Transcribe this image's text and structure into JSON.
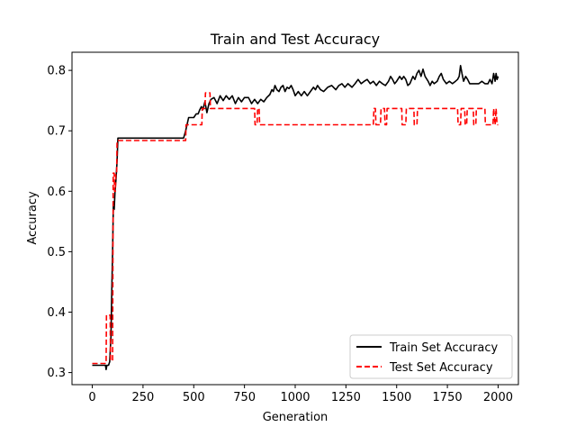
{
  "chart_data": {
    "type": "line",
    "title": "Train and Test Accuracy",
    "xlabel": "Generation",
    "ylabel": "Accuracy",
    "xlim": [
      -100,
      2100
    ],
    "ylim": [
      0.28,
      0.83
    ],
    "xticks": [
      0,
      250,
      500,
      750,
      1000,
      1250,
      1500,
      1750,
      2000
    ],
    "yticks": [
      0.3,
      0.4,
      0.5,
      0.6,
      0.7,
      0.8
    ],
    "xtick_labels": [
      "0",
      "250",
      "500",
      "750",
      "1000",
      "1250",
      "1500",
      "1750",
      "2000"
    ],
    "ytick_labels": [
      "0.3",
      "0.4",
      "0.5",
      "0.6",
      "0.7",
      "0.8"
    ],
    "grid": false,
    "legend_position": "lower-right",
    "series": [
      {
        "name": "Train Set Accuracy",
        "color": "#000000",
        "style": "solid",
        "points": [
          [
            0,
            0.312
          ],
          [
            65,
            0.312
          ],
          [
            68,
            0.305
          ],
          [
            72,
            0.312
          ],
          [
            80,
            0.312
          ],
          [
            86,
            0.318
          ],
          [
            92,
            0.36
          ],
          [
            97,
            0.45
          ],
          [
            100,
            0.5
          ],
          [
            104,
            0.58
          ],
          [
            108,
            0.57
          ],
          [
            112,
            0.6
          ],
          [
            117,
            0.62
          ],
          [
            122,
            0.65
          ],
          [
            126,
            0.688
          ],
          [
            450,
            0.688
          ],
          [
            460,
            0.7
          ],
          [
            475,
            0.722
          ],
          [
            500,
            0.722
          ],
          [
            512,
            0.728
          ],
          [
            522,
            0.728
          ],
          [
            530,
            0.735
          ],
          [
            538,
            0.74
          ],
          [
            545,
            0.735
          ],
          [
            555,
            0.748
          ],
          [
            565,
            0.73
          ],
          [
            575,
            0.745
          ],
          [
            585,
            0.752
          ],
          [
            600,
            0.755
          ],
          [
            615,
            0.745
          ],
          [
            630,
            0.758
          ],
          [
            645,
            0.75
          ],
          [
            660,
            0.758
          ],
          [
            675,
            0.752
          ],
          [
            690,
            0.758
          ],
          [
            705,
            0.745
          ],
          [
            720,
            0.755
          ],
          [
            735,
            0.748
          ],
          [
            750,
            0.755
          ],
          [
            770,
            0.755
          ],
          [
            785,
            0.745
          ],
          [
            800,
            0.752
          ],
          [
            815,
            0.745
          ],
          [
            830,
            0.752
          ],
          [
            845,
            0.748
          ],
          [
            860,
            0.755
          ],
          [
            875,
            0.76
          ],
          [
            885,
            0.768
          ],
          [
            892,
            0.765
          ],
          [
            900,
            0.775
          ],
          [
            910,
            0.768
          ],
          [
            920,
            0.765
          ],
          [
            930,
            0.772
          ],
          [
            940,
            0.775
          ],
          [
            950,
            0.765
          ],
          [
            960,
            0.772
          ],
          [
            970,
            0.77
          ],
          [
            980,
            0.775
          ],
          [
            990,
            0.768
          ],
          [
            1000,
            0.758
          ],
          [
            1015,
            0.765
          ],
          [
            1030,
            0.758
          ],
          [
            1045,
            0.765
          ],
          [
            1060,
            0.758
          ],
          [
            1075,
            0.765
          ],
          [
            1090,
            0.772
          ],
          [
            1100,
            0.768
          ],
          [
            1110,
            0.775
          ],
          [
            1125,
            0.768
          ],
          [
            1140,
            0.765
          ],
          [
            1160,
            0.772
          ],
          [
            1180,
            0.775
          ],
          [
            1200,
            0.768
          ],
          [
            1215,
            0.775
          ],
          [
            1230,
            0.778
          ],
          [
            1245,
            0.772
          ],
          [
            1260,
            0.778
          ],
          [
            1280,
            0.772
          ],
          [
            1295,
            0.778
          ],
          [
            1310,
            0.785
          ],
          [
            1325,
            0.778
          ],
          [
            1340,
            0.782
          ],
          [
            1355,
            0.785
          ],
          [
            1370,
            0.778
          ],
          [
            1385,
            0.782
          ],
          [
            1400,
            0.775
          ],
          [
            1415,
            0.782
          ],
          [
            1430,
            0.778
          ],
          [
            1445,
            0.775
          ],
          [
            1460,
            0.782
          ],
          [
            1470,
            0.79
          ],
          [
            1480,
            0.785
          ],
          [
            1490,
            0.778
          ],
          [
            1500,
            0.782
          ],
          [
            1515,
            0.79
          ],
          [
            1525,
            0.785
          ],
          [
            1535,
            0.79
          ],
          [
            1545,
            0.785
          ],
          [
            1555,
            0.775
          ],
          [
            1565,
            0.778
          ],
          [
            1580,
            0.79
          ],
          [
            1590,
            0.785
          ],
          [
            1600,
            0.795
          ],
          [
            1610,
            0.8
          ],
          [
            1620,
            0.79
          ],
          [
            1630,
            0.802
          ],
          [
            1640,
            0.79
          ],
          [
            1655,
            0.782
          ],
          [
            1665,
            0.775
          ],
          [
            1675,
            0.782
          ],
          [
            1685,
            0.778
          ],
          [
            1700,
            0.782
          ],
          [
            1710,
            0.79
          ],
          [
            1720,
            0.795
          ],
          [
            1730,
            0.785
          ],
          [
            1745,
            0.778
          ],
          [
            1760,
            0.782
          ],
          [
            1775,
            0.778
          ],
          [
            1790,
            0.782
          ],
          [
            1800,
            0.785
          ],
          [
            1808,
            0.79
          ],
          [
            1815,
            0.808
          ],
          [
            1822,
            0.795
          ],
          [
            1830,
            0.782
          ],
          [
            1840,
            0.79
          ],
          [
            1850,
            0.785
          ],
          [
            1860,
            0.778
          ],
          [
            1875,
            0.778
          ],
          [
            1890,
            0.778
          ],
          [
            1905,
            0.778
          ],
          [
            1920,
            0.782
          ],
          [
            1935,
            0.778
          ],
          [
            1950,
            0.778
          ],
          [
            1960,
            0.785
          ],
          [
            1970,
            0.778
          ],
          [
            1978,
            0.795
          ],
          [
            1985,
            0.782
          ],
          [
            1990,
            0.795
          ],
          [
            1995,
            0.785
          ],
          [
            2000,
            0.79
          ]
        ]
      },
      {
        "name": "Test Set Accuracy",
        "color": "#ff0000",
        "style": "dashed",
        "points": [
          [
            0,
            0.315
          ],
          [
            68,
            0.315
          ],
          [
            70,
            0.395
          ],
          [
            88,
            0.395
          ],
          [
            90,
            0.32
          ],
          [
            100,
            0.32
          ],
          [
            103,
            0.63
          ],
          [
            108,
            0.63
          ],
          [
            110,
            0.6
          ],
          [
            114,
            0.6
          ],
          [
            116,
            0.63
          ],
          [
            120,
            0.63
          ],
          [
            122,
            0.684
          ],
          [
            460,
            0.684
          ],
          [
            462,
            0.71
          ],
          [
            540,
            0.71
          ],
          [
            542,
            0.737
          ],
          [
            555,
            0.737
          ],
          [
            558,
            0.763
          ],
          [
            580,
            0.763
          ],
          [
            582,
            0.737
          ],
          [
            800,
            0.737
          ],
          [
            802,
            0.71
          ],
          [
            812,
            0.71
          ],
          [
            815,
            0.737
          ],
          [
            822,
            0.737
          ],
          [
            825,
            0.71
          ],
          [
            1385,
            0.71
          ],
          [
            1388,
            0.737
          ],
          [
            1395,
            0.737
          ],
          [
            1398,
            0.71
          ],
          [
            1420,
            0.71
          ],
          [
            1423,
            0.737
          ],
          [
            1440,
            0.737
          ],
          [
            1443,
            0.71
          ],
          [
            1450,
            0.71
          ],
          [
            1453,
            0.737
          ],
          [
            1525,
            0.737
          ],
          [
            1527,
            0.71
          ],
          [
            1545,
            0.71
          ],
          [
            1548,
            0.737
          ],
          [
            1585,
            0.737
          ],
          [
            1587,
            0.71
          ],
          [
            1600,
            0.71
          ],
          [
            1603,
            0.737
          ],
          [
            1800,
            0.737
          ],
          [
            1803,
            0.71
          ],
          [
            1815,
            0.71
          ],
          [
            1818,
            0.737
          ],
          [
            1835,
            0.737
          ],
          [
            1838,
            0.71
          ],
          [
            1845,
            0.71
          ],
          [
            1848,
            0.737
          ],
          [
            1878,
            0.737
          ],
          [
            1880,
            0.71
          ],
          [
            1890,
            0.71
          ],
          [
            1893,
            0.737
          ],
          [
            1935,
            0.737
          ],
          [
            1937,
            0.71
          ],
          [
            1975,
            0.71
          ],
          [
            1978,
            0.737
          ],
          [
            1985,
            0.71
          ],
          [
            1990,
            0.737
          ],
          [
            1995,
            0.71
          ],
          [
            2000,
            0.71
          ]
        ]
      }
    ]
  }
}
